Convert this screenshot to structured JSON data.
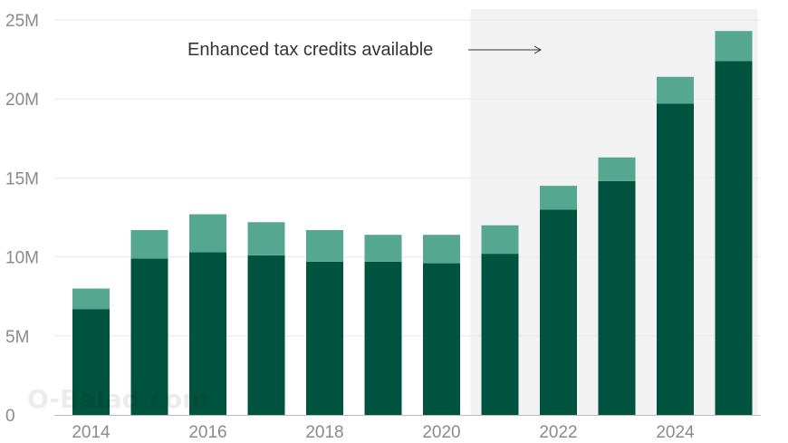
{
  "chart_data": {
    "type": "bar",
    "stacked": true,
    "categories": [
      "2014",
      "2015",
      "2016",
      "2017",
      "2018",
      "2019",
      "2020",
      "2021",
      "2022",
      "2023",
      "2024",
      "2025"
    ],
    "series": [
      {
        "values": [
          6.7,
          9.9,
          10.3,
          10.1,
          9.7,
          9.7,
          9.6,
          10.2,
          13.0,
          14.8,
          19.7,
          22.4
        ]
      },
      {
        "values": [
          1.3,
          1.8,
          2.4,
          2.1,
          2.0,
          1.7,
          1.8,
          1.8,
          1.5,
          1.5,
          1.7,
          1.9
        ]
      }
    ],
    "ylim": [
      0,
      25
    ],
    "yticks": [
      0,
      5,
      10,
      15,
      20,
      25
    ],
    "ytick_labels": [
      "0",
      "5M",
      "10M",
      "15M",
      "20M",
      "25M"
    ],
    "xtick_labels": [
      "2014",
      "2016",
      "2018",
      "2020",
      "2022",
      "2024"
    ],
    "grid": true,
    "shaded_region": {
      "from": "2021",
      "to": "2025"
    },
    "annotation": "Enhanced tax credits available"
  },
  "colors": {
    "base": "#00543f",
    "top": "#55a88f",
    "shade": "#f2f2f2",
    "grid": "#e8e8e8",
    "axis": "#bbbbbb"
  },
  "watermark": "O-Balad.com"
}
